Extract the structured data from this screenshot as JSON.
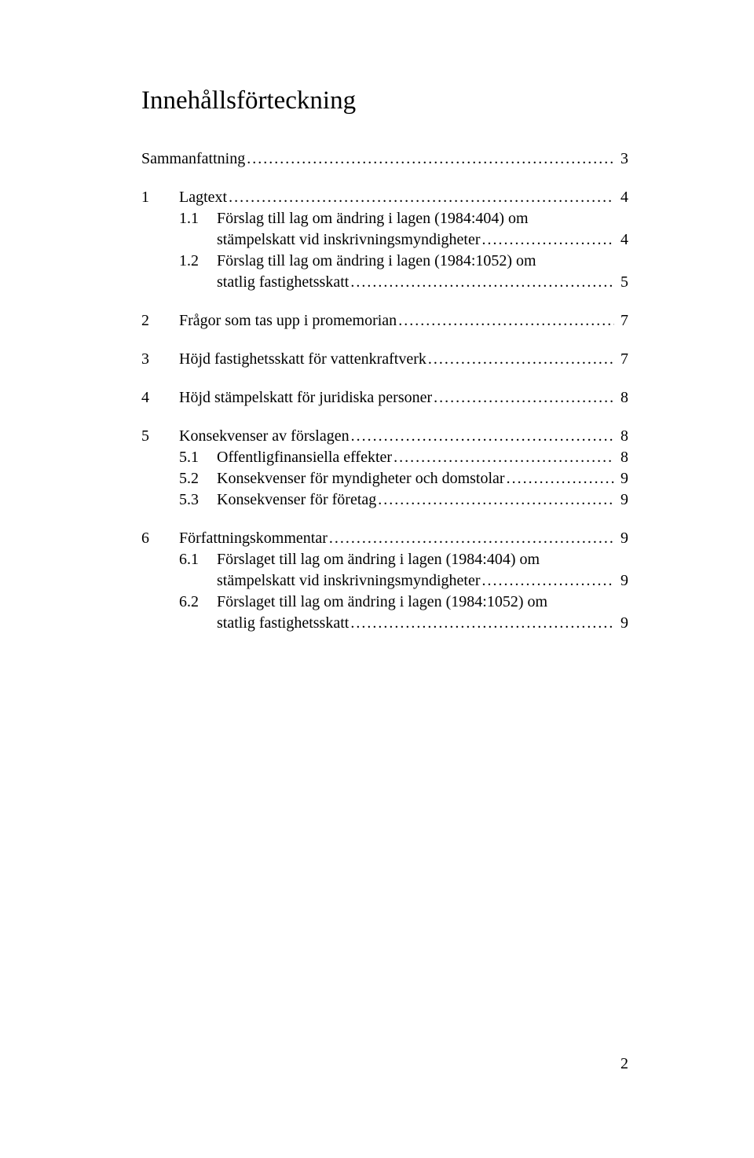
{
  "title": "Innehållsförteckning",
  "page_number": "2",
  "toc": {
    "e0": {
      "num": "",
      "label": "Sammanfattning",
      "page": "3"
    },
    "e1": {
      "num": "1",
      "label": "Lagtext",
      "page": "4"
    },
    "e2": {
      "num": "1.1",
      "label": "Förslag till lag om ändring i lagen (1984:404) om stämpelskatt vid inskrivningsmyndigheter",
      "page": "4"
    },
    "e3": {
      "num": "1.2",
      "label": "Förslag till lag om ändring i lagen (1984:1052) om statlig fastighetsskatt",
      "page": "5"
    },
    "e4": {
      "num": "2",
      "label": "Frågor som tas upp i promemorian",
      "page": "7"
    },
    "e5": {
      "num": "3",
      "label": "Höjd fastighetsskatt för vattenkraftverk",
      "page": "7"
    },
    "e6": {
      "num": "4",
      "label": "Höjd stämpelskatt för juridiska personer",
      "page": "8"
    },
    "e7": {
      "num": "5",
      "label": "Konsekvenser av förslagen",
      "page": "8"
    },
    "e8": {
      "num": "5.1",
      "label": "Offentligfinansiella effekter",
      "page": "8"
    },
    "e9": {
      "num": "5.2",
      "label": "Konsekvenser för myndigheter och domstolar",
      "page": "9"
    },
    "e10": {
      "num": "5.3",
      "label": "Konsekvenser för företag",
      "page": "9"
    },
    "e11": {
      "num": "6",
      "label": "Författningskommentar",
      "page": "9"
    },
    "e12": {
      "num": "6.1",
      "label": "Förslaget till lag om ändring i lagen (1984:404) om stämpelskatt vid inskrivningsmyndigheter",
      "page": "9"
    },
    "e13": {
      "num": "6.2",
      "label": "Förslaget till lag om ändring i lagen (1984:1052) om statlig fastighetsskatt",
      "page": "9"
    }
  }
}
